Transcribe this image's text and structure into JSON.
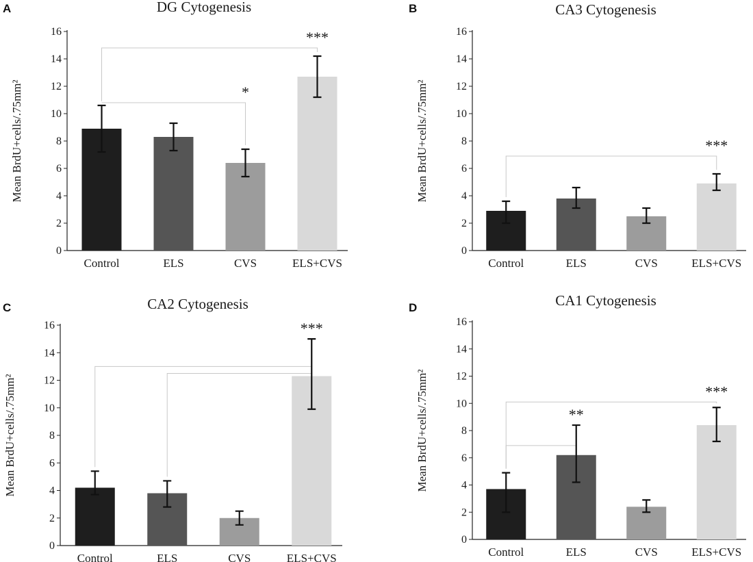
{
  "colors": {
    "Control": "#1e1e1e",
    "ELS": "#555555",
    "CVS": "#9c9c9c",
    "ELS+CVS": "#d9d9d9"
  },
  "chart_data": [
    {
      "panel": "A",
      "type": "bar",
      "title": "DG Cytogenesis",
      "ylabel": "Mean BrdU+cells/.75mm²",
      "categories": [
        "Control",
        "ELS",
        "CVS",
        "ELS+CVS"
      ],
      "values": [
        8.9,
        8.3,
        6.4,
        12.7
      ],
      "error_low": [
        7.2,
        7.3,
        5.4,
        11.2
      ],
      "error_high": [
        10.6,
        9.3,
        7.4,
        14.2
      ],
      "yticks": [
        0,
        2,
        4,
        6,
        8,
        10,
        12,
        14,
        16
      ],
      "ylim": [
        0,
        16
      ],
      "annotations": [
        {
          "from": "Control",
          "to": "ELS+CVS",
          "label": "***",
          "level": 14.8
        },
        {
          "from": "Control",
          "to": "CVS",
          "label": "*",
          "level": 10.8
        }
      ]
    },
    {
      "panel": "B",
      "type": "bar",
      "title": "CA3 Cytogenesis",
      "ylabel": "Mean BrdU+cells/.75mm²",
      "categories": [
        "Control",
        "ELS",
        "CVS",
        "ELS+CVS"
      ],
      "values": [
        2.9,
        3.8,
        2.5,
        4.9
      ],
      "error_low": [
        2.0,
        3.1,
        2.0,
        4.4
      ],
      "error_high": [
        3.6,
        4.6,
        3.1,
        5.6
      ],
      "yticks": [
        0,
        2,
        4,
        6,
        8,
        10,
        12,
        14,
        16
      ],
      "ylim": [
        0,
        16
      ],
      "annotations": [
        {
          "from": "Control",
          "to": "ELS+CVS",
          "label": "***",
          "level": 6.9
        }
      ]
    },
    {
      "panel": "C",
      "type": "bar",
      "title": "CA2 Cytogenesis",
      "ylabel": "Mean BrdU+cells/.75mm²",
      "categories": [
        "Control",
        "ELS",
        "CVS",
        "ELS+CVS"
      ],
      "values": [
        4.2,
        3.8,
        2.0,
        12.3
      ],
      "error_low": [
        3.7,
        2.8,
        1.5,
        9.9
      ],
      "error_high": [
        5.4,
        4.7,
        2.5,
        15.0
      ],
      "yticks": [
        0,
        2,
        4,
        6,
        8,
        10,
        12,
        14,
        16
      ],
      "ylim": [
        0,
        16
      ],
      "annotations": [
        {
          "from": "Control",
          "to": "ELS+CVS",
          "label": "***",
          "level": 13.0
        },
        {
          "from": "ELS",
          "to": "ELS+CVS",
          "label": "",
          "level": 12.5
        }
      ]
    },
    {
      "panel": "D",
      "type": "bar",
      "title": "CA1 Cytogenesis",
      "ylabel": "Mean BrdU+cells/.75mm²",
      "categories": [
        "Control",
        "ELS",
        "CVS",
        "ELS+CVS"
      ],
      "values": [
        3.7,
        6.2,
        2.4,
        8.4
      ],
      "error_low": [
        2.0,
        4.2,
        2.0,
        7.2
      ],
      "error_high": [
        4.9,
        8.4,
        2.9,
        9.7
      ],
      "yticks": [
        0,
        2,
        4,
        6,
        8,
        10,
        12,
        14,
        16
      ],
      "ylim": [
        0,
        16
      ],
      "annotations": [
        {
          "from": "Control",
          "to": "ELS+CVS",
          "label": "***",
          "level": 10.1
        },
        {
          "from": "Control",
          "to": "ELS",
          "label": "**",
          "level": 6.9
        }
      ]
    }
  ]
}
